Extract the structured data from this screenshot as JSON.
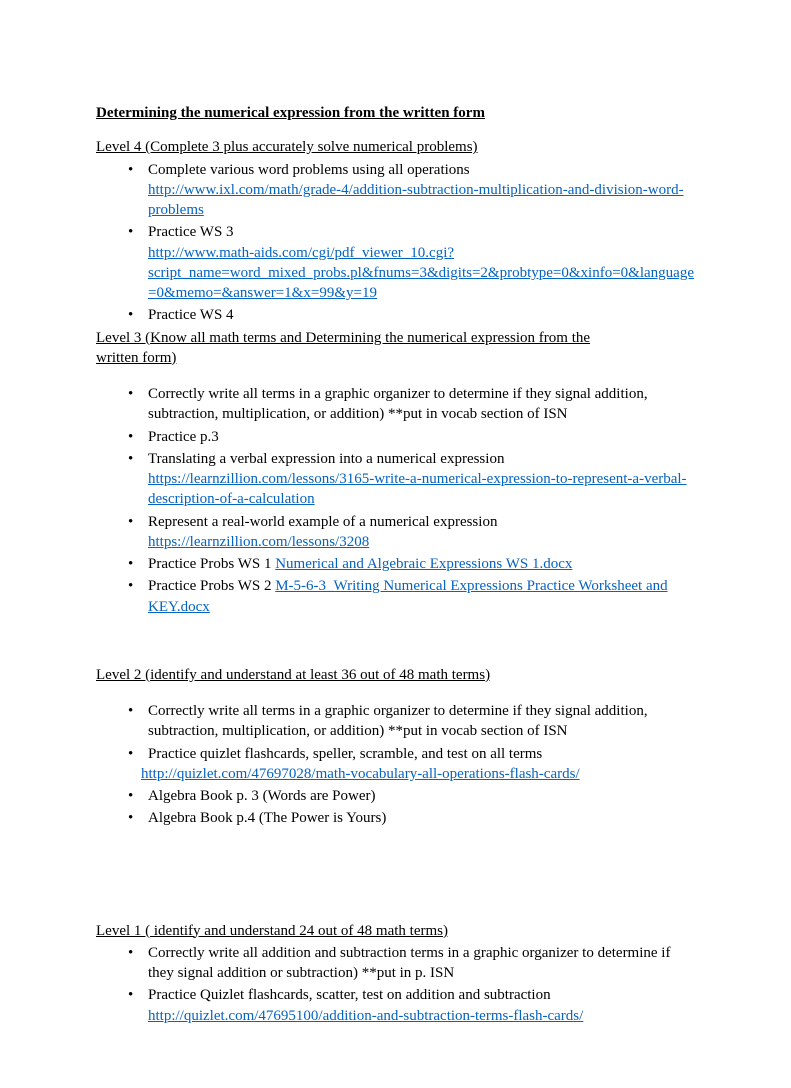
{
  "title": "Determining the numerical expression from the written form",
  "level4": {
    "heading": "Level 4 (Complete 3 plus accurately solve numerical problems)",
    "items": [
      {
        "text": "Complete various word problems using all operations",
        "link": "http://www.ixl.com/math/grade-4/addition-subtraction-multiplication-and-division-word-problems"
      },
      {
        "text": "Practice WS 3",
        "link": "http://www.math-aids.com/cgi/pdf_viewer_10.cgi?script_name=word_mixed_probs.pl&fnums=3&digits=2&probtype=0&xinfo=0&language=0&memo=&answer=1&x=99&y=19"
      },
      {
        "text": "Practice WS 4"
      }
    ]
  },
  "level3": {
    "heading_l1": "Level 3 (Know all math terms and Determining the numerical expression from the",
    "heading_l2": "written form)",
    "items": [
      {
        "text": "Correctly write all terms in a graphic organizer to determine if they signal addition, subtraction, multiplication, or addition) **put in vocab section of ISN"
      },
      {
        "text": "Practice p.3"
      },
      {
        "text": "Translating a verbal expression into a numerical expression",
        "link": "https://learnzillion.com/lessons/3165-write-a-numerical-expression-to-represent-a-verbal-description-of-a-calculation"
      },
      {
        "text": "Represent a real-world example of a numerical expression",
        "link": "https://learnzillion.com/lessons/3208"
      },
      {
        "prefix": "Practice Probs WS 1 ",
        "link_label": "Numerical and Algebraic Expressions WS 1.docx"
      },
      {
        "prefix": "Practice Probs WS 2 ",
        "link_label": "M-5-6-3_Writing Numerical Expressions Practice Worksheet and KEY.docx"
      }
    ]
  },
  "level2": {
    "heading": "Level 2 (identify and understand at least 36 out of 48 math terms)",
    "items": [
      {
        "text": "Correctly write all terms in a graphic organizer to determine if they signal addition, subtraction, multiplication, or addition) **put in vocab section of ISN"
      },
      {
        "text": "Practice quizlet flashcards, speller, scramble, and  test on all terms",
        "link_indent": "http://quizlet.com/47697028/math-vocabulary-all-operations-flash-cards/"
      },
      {
        "text": "Algebra  Book p. 3 (Words are Power)"
      },
      {
        "text": "Algebra Book p.4 (The Power is Yours)"
      }
    ]
  },
  "level1": {
    "heading": "Level 1 ( identify and understand 24 out of 48 math terms)",
    "items": [
      {
        "text": "Correctly write all addition and subtraction terms in a graphic organizer to determine if they signal addition or subtraction) **put in p.  ISN"
      },
      {
        "text": "Practice Quizlet flashcards, scatter, test on addition and subtraction",
        "link": "http://quizlet.com/47695100/addition-and-subtraction-terms-flash-cards/"
      }
    ]
  }
}
